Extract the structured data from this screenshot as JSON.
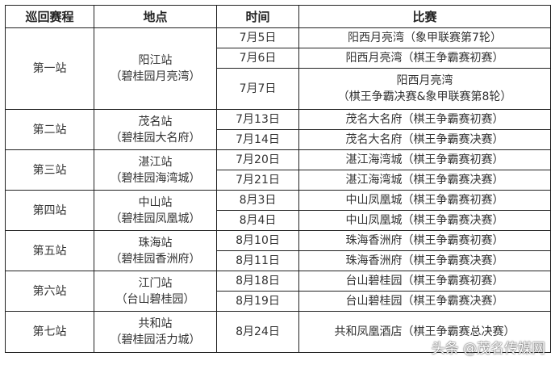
{
  "headers": [
    "巡回赛程",
    "地点",
    "时间",
    "比赛"
  ],
  "stations": [
    {
      "stage": "第一站",
      "venue": [
        "阳江站",
        "（碧桂园月亮湾）"
      ],
      "events": [
        {
          "date": "7月5日",
          "match": [
            "阳西月亮湾（象甲联赛第7轮）"
          ]
        },
        {
          "date": "7月6日",
          "match": [
            "阳西月亮湾（棋王争霸赛初赛）"
          ]
        },
        {
          "date": "7月7日",
          "match": [
            "阳西月亮湾",
            "（棋王争霸决赛&象甲联赛第8轮）"
          ]
        }
      ]
    },
    {
      "stage": "第二站",
      "venue": [
        "茂名站",
        "（碧桂园大名府）"
      ],
      "events": [
        {
          "date": "7月13日",
          "match": [
            "茂名大名府（棋王争霸赛初赛）"
          ]
        },
        {
          "date": "7月14日",
          "match": [
            "茂名大名府（棋王争霸赛决赛）"
          ]
        }
      ]
    },
    {
      "stage": "第三站",
      "venue": [
        "湛江站",
        "（碧桂园海湾城）"
      ],
      "events": [
        {
          "date": "7月20日",
          "match": [
            "湛江海湾城（棋王争霸赛初赛）"
          ]
        },
        {
          "date": "7月21日",
          "match": [
            "湛江海湾城（棋王争霸赛决赛）"
          ]
        }
      ]
    },
    {
      "stage": "第四站",
      "venue": [
        "中山站",
        "（碧桂园凤凰城）"
      ],
      "events": [
        {
          "date": "8月3日",
          "match": [
            "中山凤凰城（棋王争霸赛初赛）"
          ]
        },
        {
          "date": "8月4日",
          "match": [
            "中山凤凰城（棋王争霸赛决赛）"
          ]
        }
      ]
    },
    {
      "stage": "第五站",
      "venue": [
        "珠海站",
        "（碧桂园香洲府）"
      ],
      "events": [
        {
          "date": "8月10日",
          "match": [
            "珠海香洲府（棋王争霸赛初赛）"
          ]
        },
        {
          "date": "8月11日",
          "match": [
            "珠海香洲府（棋王争霸赛决赛）"
          ]
        }
      ]
    },
    {
      "stage": "第六站",
      "venue": [
        "江门站",
        "（台山碧桂园）"
      ],
      "events": [
        {
          "date": "8月18日",
          "match": [
            "台山碧桂园（棋王争霸赛初赛）"
          ]
        },
        {
          "date": "8月19日",
          "match": [
            "台山碧桂园（棋王争霸赛决赛）"
          ]
        }
      ]
    },
    {
      "stage": "第七站",
      "venue": [
        "共和站",
        "（碧桂园活力城）"
      ],
      "events": [
        {
          "date": "8月24日",
          "match": [
            "共和凤凰酒店（棋王争霸赛总决赛）"
          ]
        }
      ]
    }
  ],
  "watermark": "头条 @茂名传媒网"
}
